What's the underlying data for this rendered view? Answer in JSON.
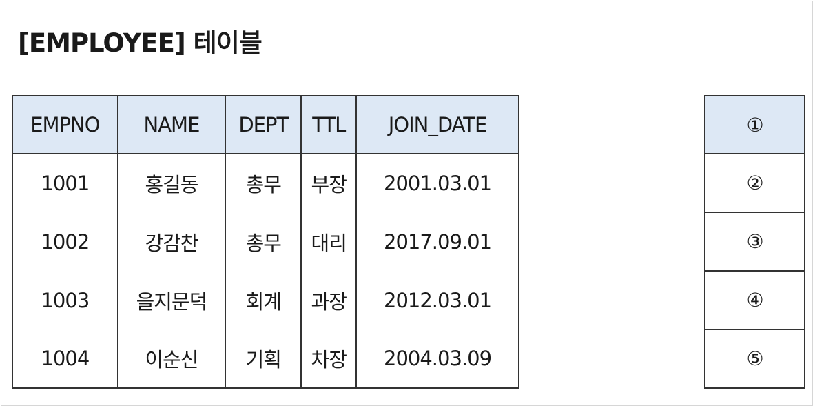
{
  "title": "[EMPLOYEE] 테이블",
  "table": {
    "columns": [
      "EMPNO",
      "NAME",
      "DEPT",
      "TTL",
      "JOIN_DATE"
    ],
    "rows": [
      [
        "1001",
        "홍길동",
        "총무",
        "부장",
        "2001.03.01"
      ],
      [
        "1002",
        "강감찬",
        "총무",
        "대리",
        "2017.09.01"
      ],
      [
        "1003",
        "을지문덕",
        "회계",
        "과장",
        "2012.03.01"
      ],
      [
        "1004",
        "이순신",
        "기획",
        "차장",
        "2004.03.09"
      ]
    ],
    "header_color": "#dde8f5"
  },
  "side_table": {
    "items": [
      "①",
      "②",
      "③",
      "④",
      "⑤"
    ]
  }
}
